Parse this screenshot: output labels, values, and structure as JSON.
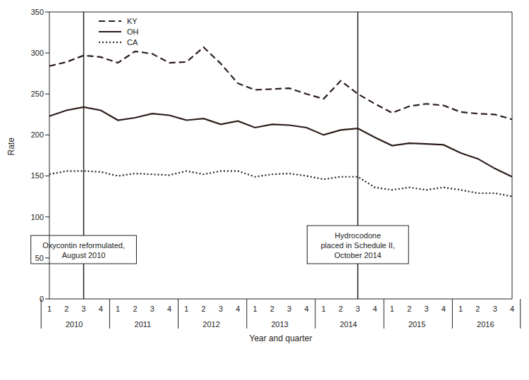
{
  "chart_data": {
    "type": "line",
    "x_label": "Year and quarter",
    "y_label": "Rate",
    "categories": [
      "1",
      "2",
      "3",
      "4",
      "1",
      "2",
      "3",
      "4",
      "1",
      "2",
      "3",
      "4",
      "1",
      "2",
      "3",
      "4",
      "1",
      "2",
      "3",
      "4",
      "1",
      "2",
      "3",
      "4",
      "1",
      "2",
      "3",
      "4"
    ],
    "years": [
      "2010",
      "2011",
      "2012",
      "2013",
      "2014",
      "2015",
      "2016"
    ],
    "series": [
      {
        "name": "KY",
        "color": "#2b1d19",
        "line_style": "dashed",
        "marker": "none",
        "values": [
          284,
          289,
          297,
          295,
          288,
          302,
          299,
          288,
          289,
          307,
          287,
          263,
          255,
          256,
          257,
          250,
          244,
          266,
          250,
          238,
          227,
          235,
          238,
          236,
          228,
          226,
          225,
          219
        ]
      },
      {
        "name": "OH",
        "color": "#2b1d19",
        "line_style": "solid",
        "marker": "none",
        "values": [
          223,
          230,
          234,
          230,
          218,
          221,
          226,
          224,
          218,
          220,
          213,
          217,
          209,
          213,
          212,
          209,
          200,
          206,
          208,
          197,
          187,
          190,
          189,
          188,
          178,
          171,
          159,
          149
        ]
      },
      {
        "name": "CA",
        "color": "#2b1d19",
        "line_style": "dotted",
        "marker": "none",
        "values": [
          152,
          156,
          156,
          155,
          150,
          153,
          152,
          151,
          156,
          152,
          156,
          156,
          149,
          152,
          153,
          150,
          146,
          149,
          149,
          136,
          133,
          136,
          133,
          136,
          133,
          129,
          129,
          125
        ]
      }
    ],
    "annotations": [
      {
        "lines": [
          "Oxycontin reformulated,",
          "August 2010"
        ],
        "at": {
          "year": "2010",
          "quarter": "3"
        }
      },
      {
        "lines": [
          "Hydrocodone",
          "placed in Schedule II,",
          "October 2014"
        ],
        "at": {
          "year": "2014",
          "quarter": "3"
        }
      }
    ],
    "ylim": [
      0,
      350
    ],
    "yticks": [
      0,
      50,
      100,
      150,
      200,
      250,
      300,
      350
    ],
    "grid": false,
    "legend": "top-left"
  }
}
